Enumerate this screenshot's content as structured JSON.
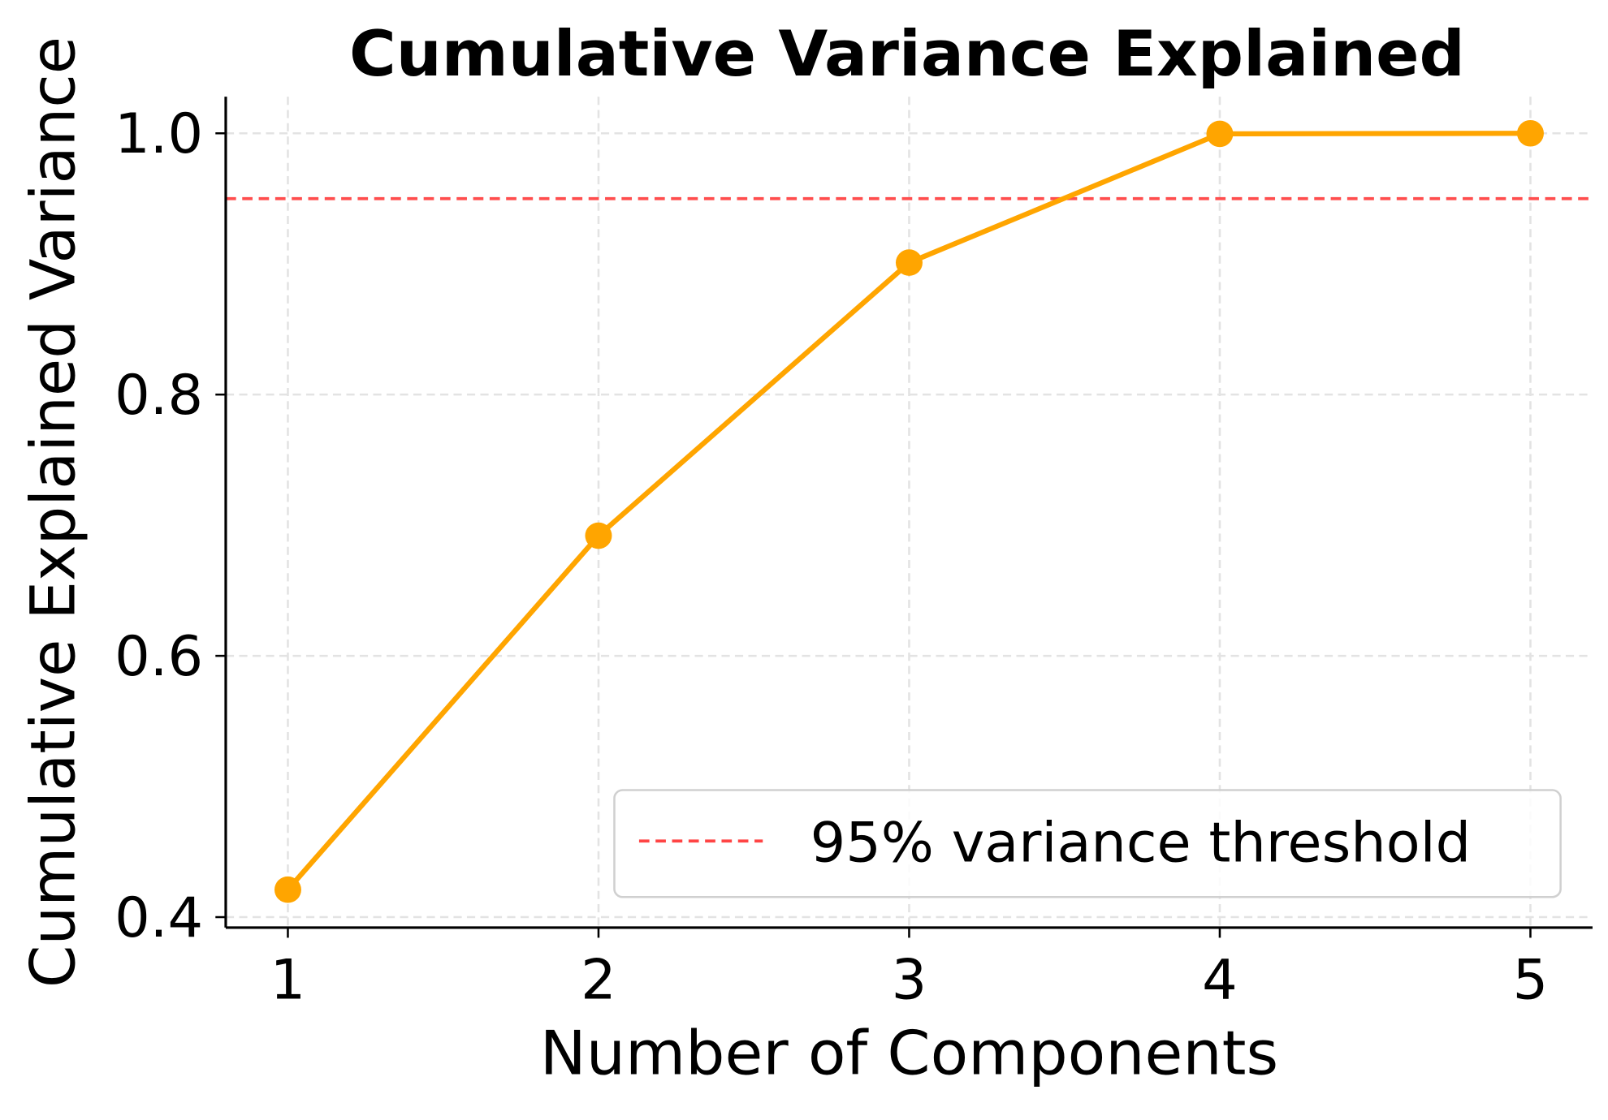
{
  "chart_data": {
    "type": "line",
    "title": "Cumulative Variance Explained",
    "xlabel": "Number of Components",
    "ylabel": "Cumulative Explained Variance",
    "x": [
      1,
      2,
      3,
      4,
      5
    ],
    "series": [
      {
        "values": [
          0.421,
          0.692,
          0.901,
          0.9996,
          1.0
        ],
        "color": "#FFA500",
        "marker": "circle"
      }
    ],
    "reference_lines": [
      {
        "orientation": "horizontal",
        "y": 0.95,
        "label": "95% variance threshold",
        "color": "#FF4444",
        "style": "dashed"
      }
    ],
    "xticks": [
      "1",
      "2",
      "3",
      "4",
      "5"
    ],
    "yticks": [
      "0.4",
      "0.6",
      "0.8",
      "1.0"
    ],
    "xlim": [
      0.8,
      5.2
    ],
    "ylim": [
      0.392,
      1.028
    ],
    "grid": true,
    "legend_position": "lower-right"
  }
}
